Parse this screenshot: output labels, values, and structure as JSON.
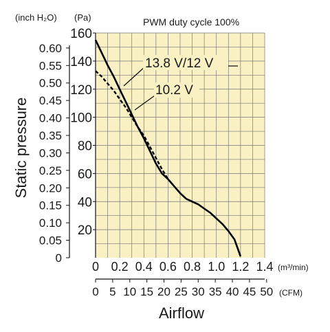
{
  "chart_data": {
    "type": "line",
    "title": "PWM duty cycle 100%",
    "ylabel": "Static pressure",
    "xlabel": "Airflow",
    "y_units_left": "(inch H₂O)",
    "y_units_right": "(Pa)",
    "x_units_top": "(m³/min)",
    "x_units_bottom": "(CFM)",
    "xlim": [
      0,
      1.4
    ],
    "ylim": [
      0,
      160
    ],
    "grid": true,
    "pa_ticks": [
      "20",
      "40",
      "60",
      "80",
      "100",
      "120",
      "140",
      "160"
    ],
    "inh2o_ticks": [
      "0",
      "0.05",
      "0.10",
      "0.15",
      "0.20",
      "0.25",
      "0.30",
      "0.35",
      "0.40",
      "0.45",
      "0.50",
      "0.55",
      "0.60"
    ],
    "m3min_ticks": [
      "0",
      "0.2",
      "0.4",
      "0.6",
      "0.8",
      "1.0",
      "1.2",
      "1.4"
    ],
    "cfm_ticks": [
      "0",
      "5",
      "10",
      "15",
      "20",
      "25",
      "30",
      "35",
      "40",
      "45",
      "50"
    ],
    "series": [
      {
        "name": "13.8 V/12 V",
        "style": "solid",
        "x": [
          0,
          0.05,
          0.1,
          0.15,
          0.2,
          0.25,
          0.3,
          0.35,
          0.4,
          0.45,
          0.5,
          0.55,
          0.6,
          0.65,
          0.7,
          0.75,
          0.8,
          0.85,
          0.9,
          0.95,
          1.0,
          1.05,
          1.1,
          1.15,
          1.2
        ],
        "y": [
          155,
          146,
          137,
          129,
          120,
          111,
          102,
          93,
          85,
          76,
          67,
          60,
          56,
          51,
          46,
          42,
          40,
          38,
          35,
          32,
          28,
          24,
          19,
          13,
          1
        ]
      },
      {
        "name": "10.2 V",
        "style": "dashed",
        "x": [
          0,
          0.05,
          0.1,
          0.15,
          0.2,
          0.25,
          0.3,
          0.35,
          0.4,
          0.45,
          0.5,
          0.55,
          0.6
        ],
        "y": [
          133,
          129,
          124,
          119,
          113,
          107,
          100,
          93,
          87,
          79,
          71,
          63,
          56
        ]
      }
    ]
  }
}
